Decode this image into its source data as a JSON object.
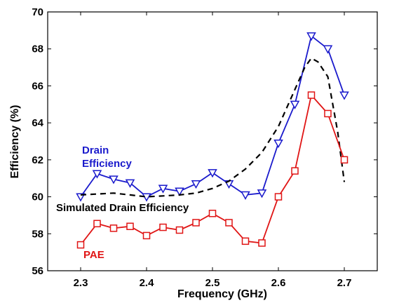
{
  "chart_data": {
    "type": "line",
    "xlabel": "Frequency (GHz)",
    "ylabel": "Efficiency (%)",
    "xlim": [
      2.25,
      2.75
    ],
    "ylim": [
      56,
      70
    ],
    "x_ticks": [
      "2.3",
      "2.4",
      "2.5",
      "2.6",
      "2.7"
    ],
    "y_ticks": [
      "56",
      "58",
      "60",
      "62",
      "64",
      "66",
      "68",
      "70"
    ],
    "grid": false,
    "series": [
      {
        "name": "Drain Efficiency",
        "color": "#1a1acc",
        "marker": "triangle-down",
        "line": "solid",
        "x": [
          2.3,
          2.325,
          2.35,
          2.375,
          2.4,
          2.425,
          2.45,
          2.475,
          2.5,
          2.525,
          2.55,
          2.575,
          2.6,
          2.625,
          2.65,
          2.675,
          2.7
        ],
        "y": [
          60.0,
          61.25,
          60.95,
          60.75,
          60.0,
          60.45,
          60.3,
          60.7,
          61.3,
          60.7,
          60.1,
          60.2,
          62.9,
          65.0,
          68.7,
          68.0,
          65.5
        ]
      },
      {
        "name": "Simulated Drain Efficiency",
        "color": "#000000",
        "marker": "none",
        "line": "dashed",
        "x": [
          2.3,
          2.325,
          2.35,
          2.375,
          2.4,
          2.425,
          2.45,
          2.475,
          2.5,
          2.525,
          2.55,
          2.575,
          2.6,
          2.625,
          2.64,
          2.65,
          2.66,
          2.675,
          2.69,
          2.7
        ],
        "y": [
          60.1,
          60.15,
          60.2,
          60.1,
          60.0,
          60.05,
          60.1,
          60.2,
          60.45,
          60.85,
          61.5,
          62.4,
          63.8,
          65.8,
          67.0,
          67.5,
          67.3,
          66.5,
          63.5,
          60.8
        ]
      },
      {
        "name": "PAE",
        "color": "#e01515",
        "marker": "square",
        "line": "solid",
        "x": [
          2.3,
          2.325,
          2.35,
          2.375,
          2.4,
          2.425,
          2.45,
          2.475,
          2.5,
          2.525,
          2.55,
          2.575,
          2.6,
          2.625,
          2.65,
          2.675,
          2.7
        ],
        "y": [
          57.4,
          58.55,
          58.3,
          58.4,
          57.9,
          58.35,
          58.2,
          58.6,
          59.1,
          58.6,
          57.6,
          57.5,
          60.0,
          61.4,
          65.5,
          64.5,
          62.0
        ]
      }
    ],
    "annotations": {
      "drain_line1": "Drain",
      "drain_line2": "Efficiency",
      "simulated": "Simulated Drain Efficiency",
      "pae": "PAE"
    }
  }
}
